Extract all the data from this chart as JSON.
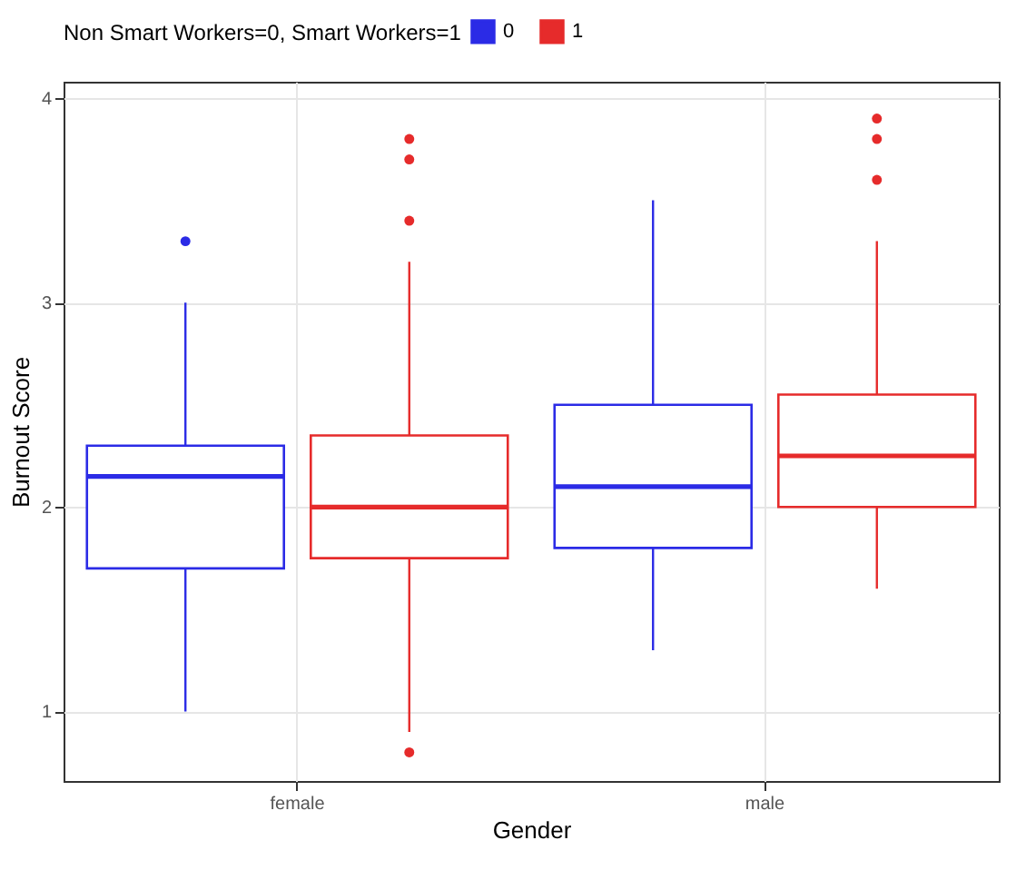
{
  "chart_data": {
    "type": "box",
    "xlabel": "Gender",
    "ylabel": "Burnout Score",
    "legend_title": "Non Smart Workers=0, Smart Workers=1",
    "categories": [
      "female",
      "male"
    ],
    "series": [
      {
        "name": "0",
        "color": "#2b2be6",
        "boxes": [
          {
            "low": 1.0,
            "q1": 1.7,
            "median": 2.15,
            "q3": 2.3,
            "high": 3.0,
            "outliers": [
              3.3
            ]
          },
          {
            "low": 1.3,
            "q1": 1.8,
            "median": 2.1,
            "q3": 2.5,
            "high": 3.5
          }
        ]
      },
      {
        "name": "1",
        "color": "#e62b2b",
        "boxes": [
          {
            "low": 0.9,
            "q1": 1.75,
            "median": 2.0,
            "q3": 2.35,
            "high": 3.2,
            "outliers": [
              0.8,
              3.4,
              3.7,
              3.8
            ]
          },
          {
            "low": 1.6,
            "q1": 2.0,
            "median": 2.25,
            "q3": 2.55,
            "high": 3.3,
            "outliers": [
              3.6,
              3.8,
              3.9
            ]
          }
        ]
      }
    ],
    "ylim": [
      0.66,
      4.08
    ],
    "yticks": [
      1,
      2,
      3,
      4
    ],
    "grid": true,
    "legend": "top"
  }
}
